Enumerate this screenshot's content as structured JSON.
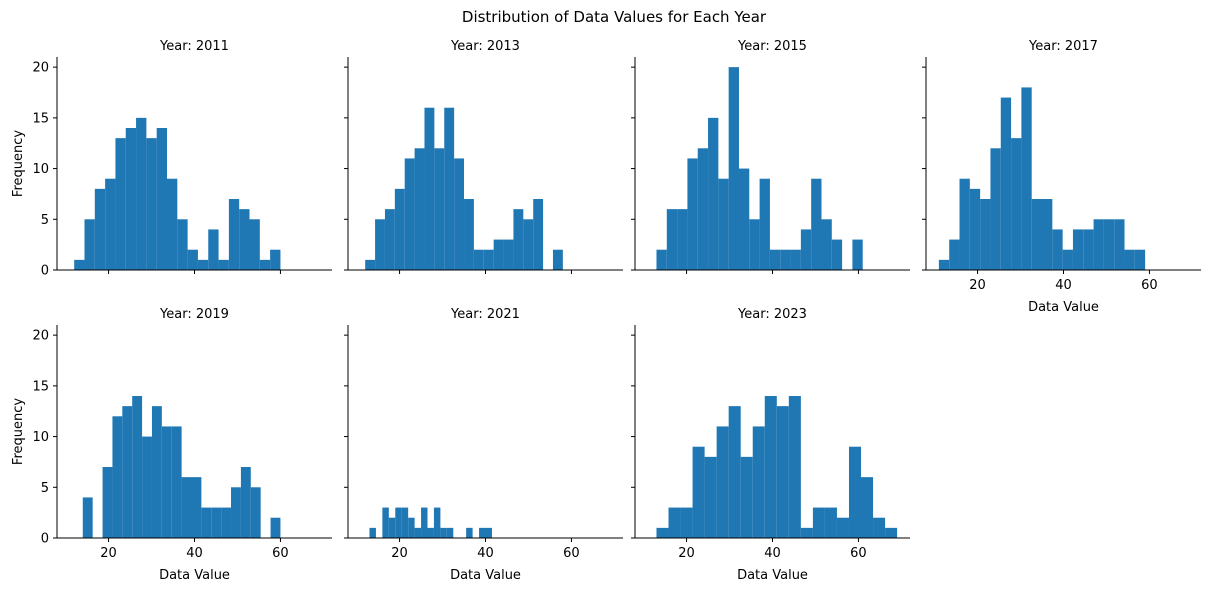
{
  "chart_data": {
    "type": "bar",
    "title": "Distribution of Data Values for Each Year",
    "xlabel": "Data Value",
    "ylabel": "Frequency",
    "xlim": [
      8,
      72
    ],
    "ylim": [
      0,
      21
    ],
    "xticks": [
      20,
      40,
      60
    ],
    "yticks": [
      0,
      5,
      10,
      15,
      20
    ],
    "bar_color": "#1f77b4",
    "grid": false,
    "panels": [
      {
        "title": "Year: 2011",
        "bins": [
          {
            "x0": 12.0,
            "x1": 14.4,
            "count": 1
          },
          {
            "x0": 14.4,
            "x1": 16.8,
            "count": 5
          },
          {
            "x0": 16.8,
            "x1": 19.2,
            "count": 8
          },
          {
            "x0": 19.2,
            "x1": 21.6,
            "count": 9
          },
          {
            "x0": 21.6,
            "x1": 24.0,
            "count": 13
          },
          {
            "x0": 24.0,
            "x1": 26.4,
            "count": 14
          },
          {
            "x0": 26.4,
            "x1": 28.8,
            "count": 15
          },
          {
            "x0": 28.8,
            "x1": 31.2,
            "count": 13
          },
          {
            "x0": 31.2,
            "x1": 33.6,
            "count": 14
          },
          {
            "x0": 33.6,
            "x1": 36.0,
            "count": 9
          },
          {
            "x0": 36.0,
            "x1": 38.4,
            "count": 5
          },
          {
            "x0": 38.4,
            "x1": 40.8,
            "count": 2
          },
          {
            "x0": 40.8,
            "x1": 43.2,
            "count": 1
          },
          {
            "x0": 43.2,
            "x1": 45.6,
            "count": 4
          },
          {
            "x0": 45.6,
            "x1": 48.0,
            "count": 1
          },
          {
            "x0": 48.0,
            "x1": 50.4,
            "count": 7
          },
          {
            "x0": 50.4,
            "x1": 52.8,
            "count": 6
          },
          {
            "x0": 52.8,
            "x1": 55.2,
            "count": 5
          },
          {
            "x0": 55.2,
            "x1": 57.6,
            "count": 1
          },
          {
            "x0": 57.6,
            "x1": 60.0,
            "count": 2
          }
        ]
      },
      {
        "title": "Year: 2013",
        "bins": [
          {
            "x0": 12.0,
            "x1": 14.3,
            "count": 1
          },
          {
            "x0": 14.3,
            "x1": 16.6,
            "count": 5
          },
          {
            "x0": 16.6,
            "x1": 18.9,
            "count": 6
          },
          {
            "x0": 18.9,
            "x1": 21.2,
            "count": 8
          },
          {
            "x0": 21.2,
            "x1": 23.5,
            "count": 11
          },
          {
            "x0": 23.5,
            "x1": 25.8,
            "count": 12
          },
          {
            "x0": 25.8,
            "x1": 28.1,
            "count": 16
          },
          {
            "x0": 28.1,
            "x1": 30.4,
            "count": 12
          },
          {
            "x0": 30.4,
            "x1": 32.7,
            "count": 16
          },
          {
            "x0": 32.7,
            "x1": 35.0,
            "count": 11
          },
          {
            "x0": 35.0,
            "x1": 37.3,
            "count": 7
          },
          {
            "x0": 37.3,
            "x1": 39.6,
            "count": 2
          },
          {
            "x0": 39.6,
            "x1": 41.9,
            "count": 2
          },
          {
            "x0": 41.9,
            "x1": 44.2,
            "count": 3
          },
          {
            "x0": 44.2,
            "x1": 46.5,
            "count": 3
          },
          {
            "x0": 46.5,
            "x1": 48.8,
            "count": 6
          },
          {
            "x0": 48.8,
            "x1": 51.1,
            "count": 5
          },
          {
            "x0": 51.1,
            "x1": 53.4,
            "count": 7
          },
          {
            "x0": 53.4,
            "x1": 55.7,
            "count": 0
          },
          {
            "x0": 55.7,
            "x1": 58.0,
            "count": 2
          }
        ]
      },
      {
        "title": "Year: 2015",
        "bins": [
          {
            "x0": 13.0,
            "x1": 15.4,
            "count": 2
          },
          {
            "x0": 15.4,
            "x1": 17.8,
            "count": 6
          },
          {
            "x0": 17.8,
            "x1": 20.2,
            "count": 6
          },
          {
            "x0": 20.2,
            "x1": 22.6,
            "count": 11
          },
          {
            "x0": 22.6,
            "x1": 25.0,
            "count": 12
          },
          {
            "x0": 25.0,
            "x1": 27.4,
            "count": 15
          },
          {
            "x0": 27.4,
            "x1": 29.8,
            "count": 9
          },
          {
            "x0": 29.8,
            "x1": 32.2,
            "count": 20
          },
          {
            "x0": 32.2,
            "x1": 34.6,
            "count": 10
          },
          {
            "x0": 34.6,
            "x1": 37.0,
            "count": 5
          },
          {
            "x0": 37.0,
            "x1": 39.4,
            "count": 9
          },
          {
            "x0": 39.4,
            "x1": 41.8,
            "count": 2
          },
          {
            "x0": 41.8,
            "x1": 44.2,
            "count": 2
          },
          {
            "x0": 44.2,
            "x1": 46.6,
            "count": 2
          },
          {
            "x0": 46.6,
            "x1": 49.0,
            "count": 4
          },
          {
            "x0": 49.0,
            "x1": 51.4,
            "count": 9
          },
          {
            "x0": 51.4,
            "x1": 53.8,
            "count": 5
          },
          {
            "x0": 53.8,
            "x1": 56.2,
            "count": 3
          },
          {
            "x0": 56.2,
            "x1": 58.6,
            "count": 0
          },
          {
            "x0": 58.6,
            "x1": 61.0,
            "count": 3
          }
        ]
      },
      {
        "title": "Year: 2017",
        "bins": [
          {
            "x0": 11.0,
            "x1": 13.4,
            "count": 1
          },
          {
            "x0": 13.4,
            "x1": 15.8,
            "count": 3
          },
          {
            "x0": 15.8,
            "x1": 18.2,
            "count": 9
          },
          {
            "x0": 18.2,
            "x1": 20.6,
            "count": 8
          },
          {
            "x0": 20.6,
            "x1": 23.0,
            "count": 7
          },
          {
            "x0": 23.0,
            "x1": 25.4,
            "count": 12
          },
          {
            "x0": 25.4,
            "x1": 27.8,
            "count": 17
          },
          {
            "x0": 27.8,
            "x1": 30.2,
            "count": 13
          },
          {
            "x0": 30.2,
            "x1": 32.6,
            "count": 18
          },
          {
            "x0": 32.6,
            "x1": 35.0,
            "count": 7
          },
          {
            "x0": 35.0,
            "x1": 37.4,
            "count": 7
          },
          {
            "x0": 37.4,
            "x1": 39.8,
            "count": 4
          },
          {
            "x0": 39.8,
            "x1": 42.2,
            "count": 2
          },
          {
            "x0": 42.2,
            "x1": 44.6,
            "count": 4
          },
          {
            "x0": 44.6,
            "x1": 47.0,
            "count": 4
          },
          {
            "x0": 47.0,
            "x1": 49.4,
            "count": 5
          },
          {
            "x0": 49.4,
            "x1": 51.8,
            "count": 5
          },
          {
            "x0": 51.8,
            "x1": 54.2,
            "count": 5
          },
          {
            "x0": 54.2,
            "x1": 56.6,
            "count": 2
          },
          {
            "x0": 56.6,
            "x1": 59.0,
            "count": 2
          }
        ]
      },
      {
        "title": "Year: 2019",
        "bins": [
          {
            "x0": 14.0,
            "x1": 16.3,
            "count": 4
          },
          {
            "x0": 16.3,
            "x1": 18.6,
            "count": 0
          },
          {
            "x0": 18.6,
            "x1": 20.9,
            "count": 7
          },
          {
            "x0": 20.9,
            "x1": 23.2,
            "count": 12
          },
          {
            "x0": 23.2,
            "x1": 25.5,
            "count": 13
          },
          {
            "x0": 25.5,
            "x1": 27.8,
            "count": 14
          },
          {
            "x0": 27.8,
            "x1": 30.1,
            "count": 10
          },
          {
            "x0": 30.1,
            "x1": 32.4,
            "count": 13
          },
          {
            "x0": 32.4,
            "x1": 34.7,
            "count": 11
          },
          {
            "x0": 34.7,
            "x1": 37.0,
            "count": 11
          },
          {
            "x0": 37.0,
            "x1": 39.3,
            "count": 6
          },
          {
            "x0": 39.3,
            "x1": 41.6,
            "count": 6
          },
          {
            "x0": 41.6,
            "x1": 43.9,
            "count": 3
          },
          {
            "x0": 43.9,
            "x1": 46.2,
            "count": 3
          },
          {
            "x0": 46.2,
            "x1": 48.5,
            "count": 3
          },
          {
            "x0": 48.5,
            "x1": 50.8,
            "count": 5
          },
          {
            "x0": 50.8,
            "x1": 53.1,
            "count": 7
          },
          {
            "x0": 53.1,
            "x1": 55.4,
            "count": 5
          },
          {
            "x0": 55.4,
            "x1": 57.7,
            "count": 0
          },
          {
            "x0": 57.7,
            "x1": 60.0,
            "count": 2
          }
        ]
      },
      {
        "title": "Year: 2021",
        "bins": [
          {
            "x0": 13.0,
            "x1": 14.5,
            "count": 1
          },
          {
            "x0": 14.5,
            "x1": 16.0,
            "count": 0
          },
          {
            "x0": 16.0,
            "x1": 17.5,
            "count": 3
          },
          {
            "x0": 17.5,
            "x1": 19.0,
            "count": 2
          },
          {
            "x0": 19.0,
            "x1": 20.5,
            "count": 3
          },
          {
            "x0": 20.5,
            "x1": 22.0,
            "count": 3
          },
          {
            "x0": 22.0,
            "x1": 23.5,
            "count": 2
          },
          {
            "x0": 23.5,
            "x1": 25.0,
            "count": 1
          },
          {
            "x0": 25.0,
            "x1": 26.5,
            "count": 3
          },
          {
            "x0": 26.5,
            "x1": 28.0,
            "count": 1
          },
          {
            "x0": 28.0,
            "x1": 29.5,
            "count": 3
          },
          {
            "x0": 29.5,
            "x1": 31.0,
            "count": 1
          },
          {
            "x0": 31.0,
            "x1": 32.5,
            "count": 1
          },
          {
            "x0": 32.5,
            "x1": 34.0,
            "count": 0
          },
          {
            "x0": 34.0,
            "x1": 35.5,
            "count": 0
          },
          {
            "x0": 35.5,
            "x1": 37.0,
            "count": 1
          },
          {
            "x0": 37.0,
            "x1": 38.5,
            "count": 0
          },
          {
            "x0": 38.5,
            "x1": 40.0,
            "count": 1
          },
          {
            "x0": 40.0,
            "x1": 41.5,
            "count": 1
          }
        ]
      },
      {
        "title": "Year: 2023",
        "bins": [
          {
            "x0": 13.0,
            "x1": 15.8,
            "count": 1
          },
          {
            "x0": 15.8,
            "x1": 18.6,
            "count": 3
          },
          {
            "x0": 18.6,
            "x1": 21.4,
            "count": 3
          },
          {
            "x0": 21.4,
            "x1": 24.2,
            "count": 9
          },
          {
            "x0": 24.2,
            "x1": 27.0,
            "count": 8
          },
          {
            "x0": 27.0,
            "x1": 29.8,
            "count": 11
          },
          {
            "x0": 29.8,
            "x1": 32.6,
            "count": 13
          },
          {
            "x0": 32.6,
            "x1": 35.4,
            "count": 8
          },
          {
            "x0": 35.4,
            "x1": 38.2,
            "count": 11
          },
          {
            "x0": 38.2,
            "x1": 41.0,
            "count": 14
          },
          {
            "x0": 41.0,
            "x1": 43.8,
            "count": 13
          },
          {
            "x0": 43.8,
            "x1": 46.6,
            "count": 14
          },
          {
            "x0": 46.6,
            "x1": 49.4,
            "count": 1
          },
          {
            "x0": 49.4,
            "x1": 52.2,
            "count": 3
          },
          {
            "x0": 52.2,
            "x1": 55.0,
            "count": 3
          },
          {
            "x0": 55.0,
            "x1": 57.8,
            "count": 2
          },
          {
            "x0": 57.8,
            "x1": 60.6,
            "count": 9
          },
          {
            "x0": 60.6,
            "x1": 63.4,
            "count": 6
          },
          {
            "x0": 63.4,
            "x1": 66.2,
            "count": 2
          },
          {
            "x0": 66.2,
            "x1": 69.0,
            "count": 1
          }
        ]
      }
    ]
  }
}
